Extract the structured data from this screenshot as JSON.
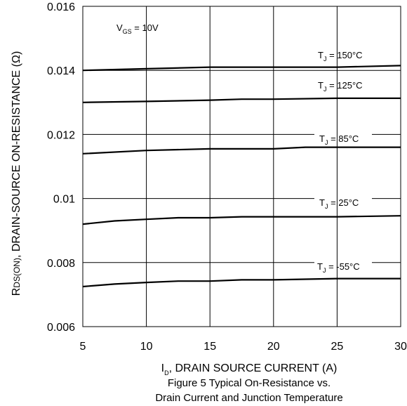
{
  "chart_data": {
    "type": "line",
    "caption_lines": [
      "Figure 5 Typical On-Resistance vs.",
      "Drain Current and Junction Temperature"
    ],
    "xlabel": {
      "main": "I",
      "sub": "D",
      "rest": ", DRAIN SOURCE CURRENT (A)"
    },
    "ylabel": {
      "main": "R",
      "sub": "DS(ON)",
      "rest": ", DRAIN-SOURCE ON-RESISTANCE (Ω)"
    },
    "xlim": [
      5,
      30
    ],
    "ylim": [
      0.006,
      0.016
    ],
    "x_ticks": [
      5,
      10,
      15,
      20,
      25,
      30
    ],
    "x_tick_labels": [
      "5",
      "10",
      "15",
      "20",
      "25",
      "30"
    ],
    "y_ticks": [
      0.006,
      0.008,
      0.01,
      0.012,
      0.014,
      0.016
    ],
    "y_tick_labels": [
      "0.006",
      "0.008",
      "0.01",
      "0.012",
      "0.014",
      "0.016"
    ],
    "grid": true,
    "condition": {
      "main": "V",
      "sub": "GS",
      "rest": " = 10V"
    },
    "series": [
      {
        "label": {
          "main": "T",
          "sub": "J",
          "rest": " = 150°C"
        },
        "x": [
          5,
          10,
          15,
          20,
          25,
          30
        ],
        "y": [
          0.014,
          0.01405,
          0.0141,
          0.0141,
          0.0141,
          0.01415
        ]
      },
      {
        "label": {
          "main": "T",
          "sub": "J",
          "rest": " = 125°C"
        },
        "x": [
          5,
          10,
          15,
          17.5,
          20,
          25,
          30
        ],
        "y": [
          0.013,
          0.01303,
          0.01307,
          0.0131,
          0.0131,
          0.01313,
          0.01313
        ]
      },
      {
        "label": {
          "main": "T",
          "sub": "J",
          "rest": " = 85°C"
        },
        "x": [
          5,
          10,
          15,
          20,
          22.5,
          25,
          30
        ],
        "y": [
          0.0114,
          0.0115,
          0.01155,
          0.01155,
          0.0116,
          0.0116,
          0.0116
        ]
      },
      {
        "label": {
          "main": "T",
          "sub": "J",
          "rest": " = 25°C"
        },
        "x": [
          5,
          7.5,
          10,
          12.5,
          15,
          17.5,
          20,
          25,
          30
        ],
        "y": [
          0.0092,
          0.0093,
          0.00935,
          0.0094,
          0.0094,
          0.00943,
          0.00943,
          0.00943,
          0.00946
        ]
      },
      {
        "label": {
          "main": "T",
          "sub": "J",
          "rest": " = -55°C"
        },
        "x": [
          5,
          7.5,
          10,
          12.5,
          15,
          17.5,
          20,
          25,
          30
        ],
        "y": [
          0.00725,
          0.00733,
          0.00738,
          0.00742,
          0.00742,
          0.00746,
          0.00746,
          0.0075,
          0.0075
        ]
      }
    ]
  }
}
